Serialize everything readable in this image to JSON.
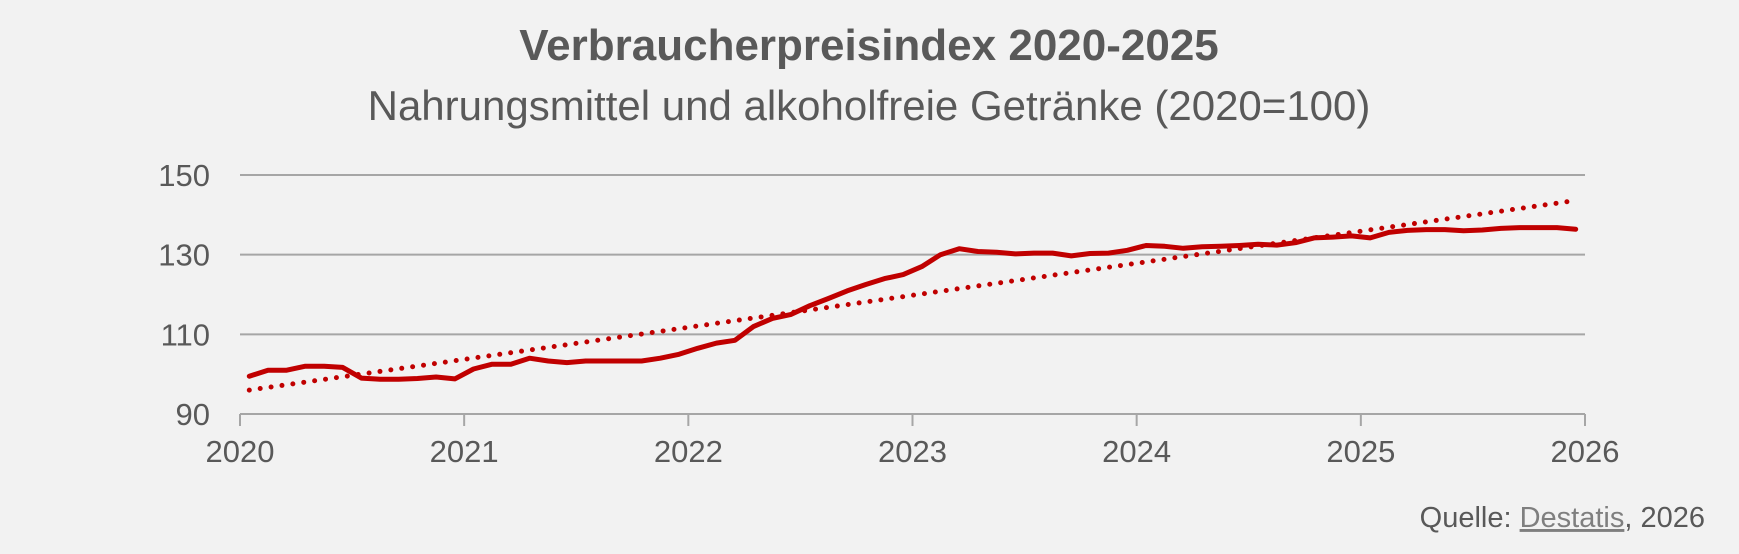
{
  "chart_data": {
    "type": "line",
    "title": "Verbraucherpreisindex 2020-2025",
    "subtitle": "Nahrungsmittel und alkoholfreie Getränke (2020=100)",
    "xlabel": "",
    "ylabel": "",
    "xlim": [
      2020,
      2026
    ],
    "ylim": [
      90,
      150
    ],
    "x_ticks": [
      "2020",
      "2021",
      "2022",
      "2023",
      "2024",
      "2025",
      "2026"
    ],
    "y_ticks": [
      "90",
      "110",
      "130",
      "150"
    ],
    "grid": true,
    "legend": "none",
    "colors": {
      "series": "#c00000",
      "trend": "#c00000",
      "grid": "#a6a6a6",
      "text": "#595959",
      "background": "#f2f2f2"
    },
    "series": [
      {
        "style": "solid",
        "x": [
          "2020-01",
          "2020-02",
          "2020-03",
          "2020-04",
          "2020-05",
          "2020-06",
          "2020-07",
          "2020-08",
          "2020-09",
          "2020-10",
          "2020-11",
          "2020-12",
          "2021-01",
          "2021-02",
          "2021-03",
          "2021-04",
          "2021-05",
          "2021-06",
          "2021-07",
          "2021-08",
          "2021-09",
          "2021-10",
          "2021-11",
          "2021-12",
          "2022-01",
          "2022-02",
          "2022-03",
          "2022-04",
          "2022-05",
          "2022-06",
          "2022-07",
          "2022-08",
          "2022-09",
          "2022-10",
          "2022-11",
          "2022-12",
          "2023-01",
          "2023-02",
          "2023-03",
          "2023-04",
          "2023-05",
          "2023-06",
          "2023-07",
          "2023-08",
          "2023-09",
          "2023-10",
          "2023-11",
          "2023-12",
          "2024-01",
          "2024-02",
          "2024-03",
          "2024-04",
          "2024-05",
          "2024-06",
          "2024-07",
          "2024-08",
          "2024-09",
          "2024-10",
          "2024-11",
          "2024-12",
          "2025-01",
          "2025-02",
          "2025-03",
          "2025-04",
          "2025-05",
          "2025-06",
          "2025-07",
          "2025-08",
          "2025-09",
          "2025-10",
          "2025-11",
          "2025-12"
        ],
        "values": [
          99.5,
          101,
          101,
          102,
          102,
          101.7,
          99,
          98.7,
          98.7,
          98.9,
          99.3,
          98.8,
          101.3,
          102.5,
          102.5,
          104,
          103.3,
          102.9,
          103.3,
          103.3,
          103.3,
          103.3,
          104,
          105,
          106.5,
          107.8,
          108.5,
          112,
          114,
          115,
          117.2,
          119,
          120.9,
          122.5,
          124,
          125,
          127,
          130,
          131.5,
          130.8,
          130.6,
          130.2,
          130.4,
          130.4,
          129.7,
          130.3,
          130.4,
          131.1,
          132.3,
          132.1,
          131.6,
          132,
          132.1,
          132.3,
          132.6,
          132.4,
          133,
          134.2,
          134.4,
          134.7,
          134.2,
          135.6,
          136.1,
          136.3,
          136.3,
          136,
          136.2,
          136.6,
          136.8,
          136.8,
          136.8,
          136.4
        ]
      },
      {
        "style": "dotted",
        "x": [
          "2020-01",
          "2025-12"
        ],
        "values": [
          96,
          143.6
        ]
      }
    ]
  },
  "source": {
    "prefix": "Quelle: ",
    "link_text": "Destatis",
    "suffix": ", 2026"
  }
}
